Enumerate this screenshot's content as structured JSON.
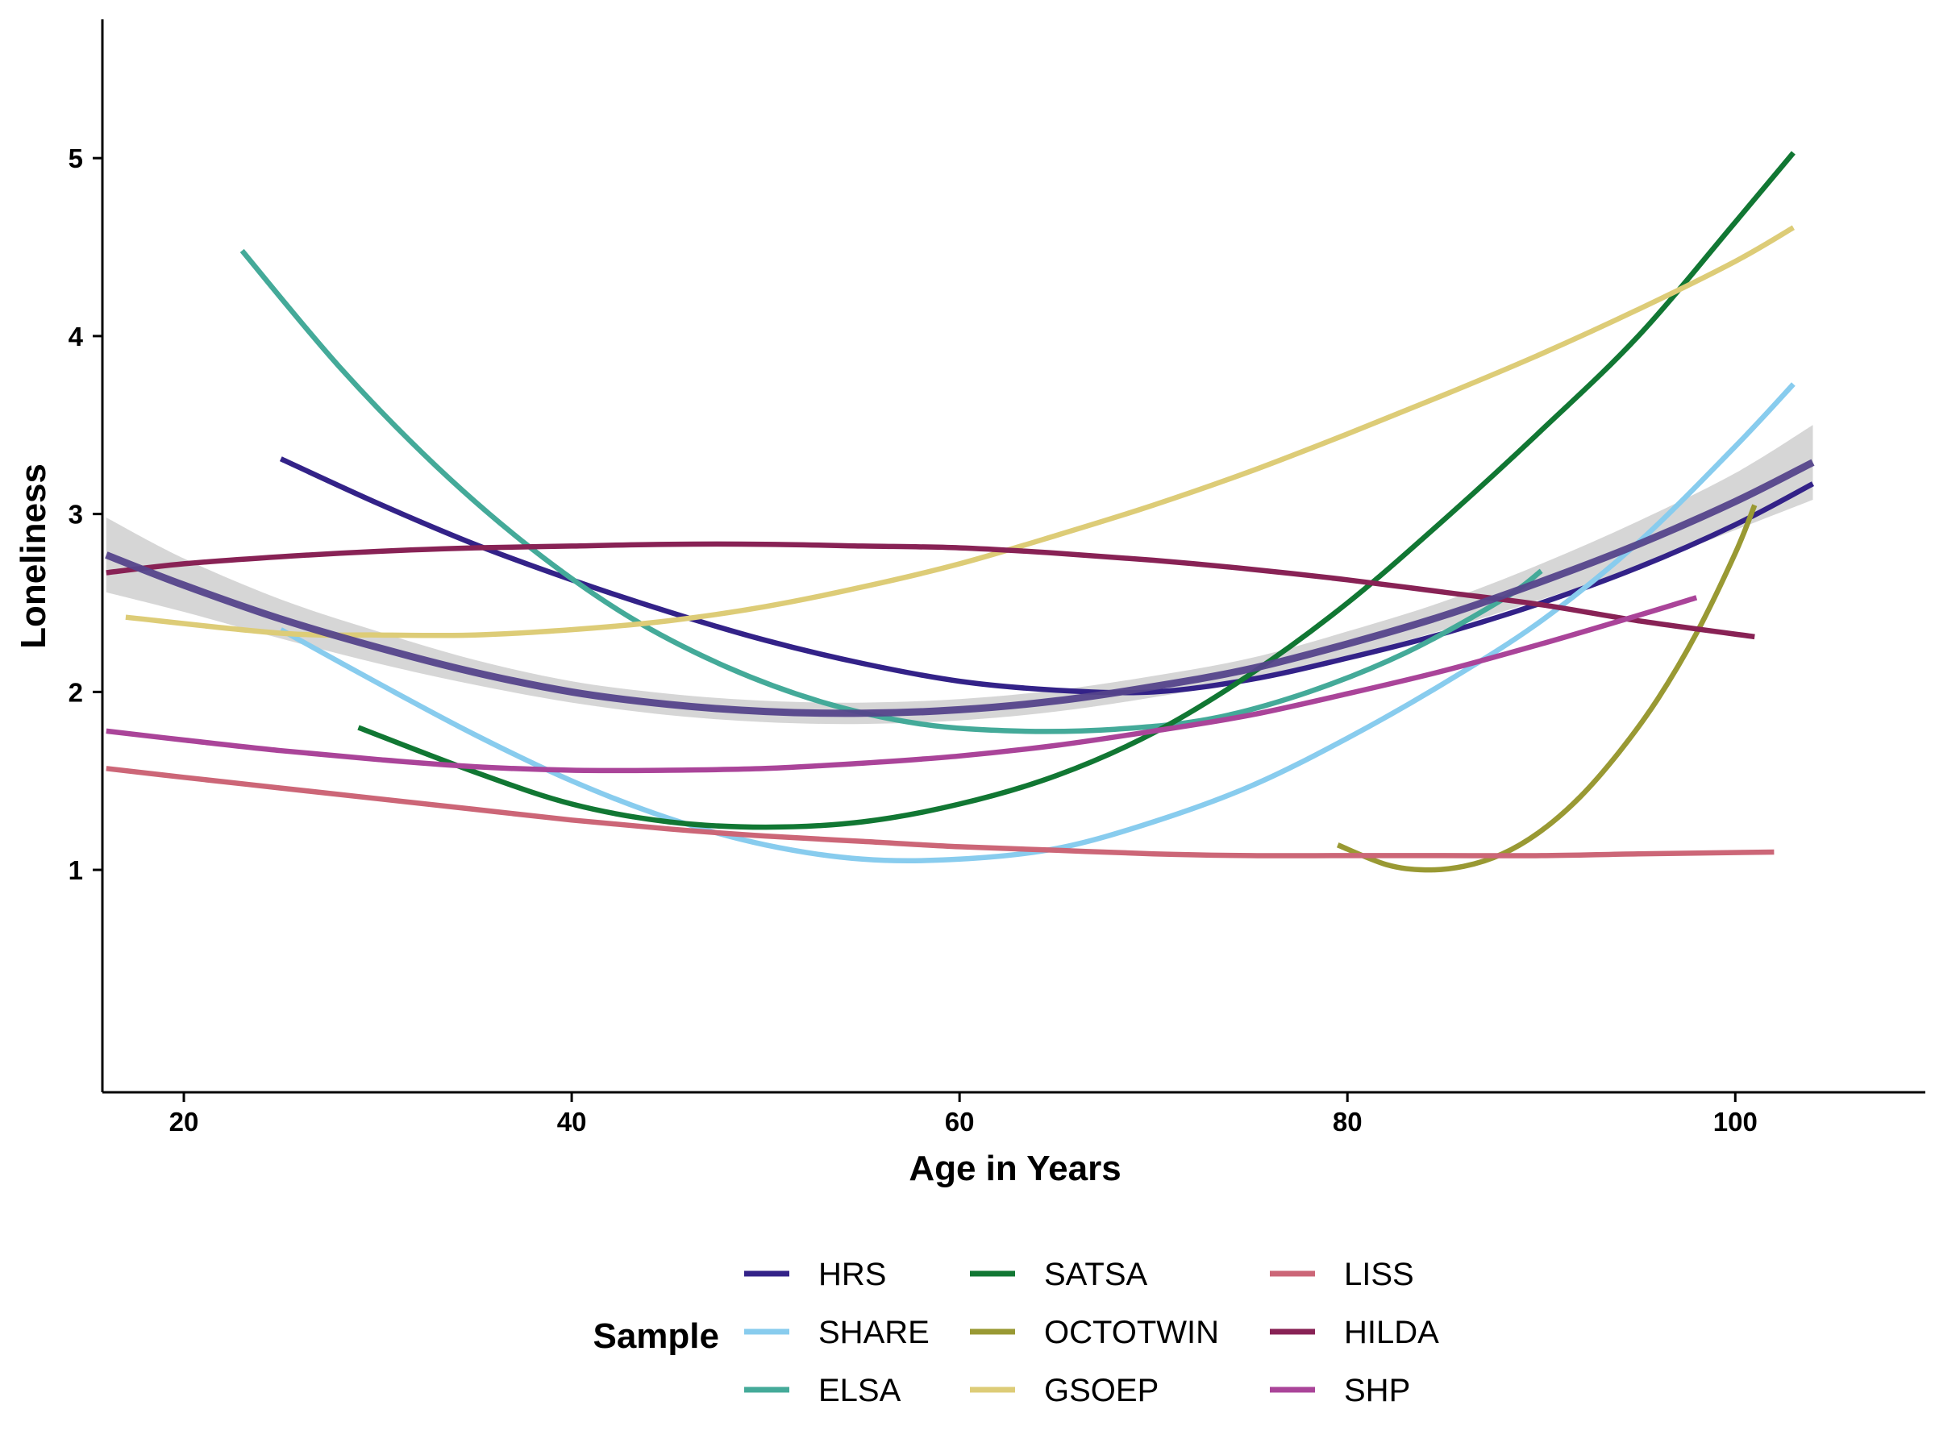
{
  "chart_data": {
    "type": "line",
    "title": "",
    "xlabel": "Age in Years",
    "ylabel": "Loneliness",
    "xlim": [
      15.8,
      109.8
    ],
    "ylim": [
      -0.25,
      5.78
    ],
    "xticks": [
      20,
      40,
      60,
      80,
      100
    ],
    "yticks": [
      1,
      2,
      3,
      4,
      5
    ],
    "grid": false,
    "legend": {
      "title": "Sample",
      "placement": "bottom",
      "columns": [
        [
          "HRS",
          "SHARE",
          "ELSA"
        ],
        [
          "SATSA",
          "OCTOTWIN",
          "GSOEP"
        ],
        [
          "LISS",
          "HILDA",
          "SHP"
        ]
      ]
    },
    "series": [
      {
        "name": "HRS",
        "color": "#332288",
        "x": [
          25,
          30,
          35,
          40,
          45,
          50,
          55,
          60,
          65,
          70,
          75,
          80,
          85,
          90,
          95,
          100,
          104
        ],
        "y": [
          3.31,
          3.06,
          2.83,
          2.63,
          2.45,
          2.29,
          2.16,
          2.06,
          2.01,
          2.0,
          2.07,
          2.19,
          2.33,
          2.5,
          2.7,
          2.94,
          3.17
        ]
      },
      {
        "name": "SHARE",
        "color": "#88CCEE",
        "x": [
          25,
          30,
          35,
          40,
          45,
          50,
          55,
          60,
          65,
          70,
          75,
          80,
          85,
          90,
          95,
          100,
          103
        ],
        "y": [
          2.35,
          2.05,
          1.76,
          1.5,
          1.29,
          1.14,
          1.06,
          1.06,
          1.12,
          1.27,
          1.47,
          1.74,
          2.05,
          2.4,
          2.84,
          3.38,
          3.73
        ]
      },
      {
        "name": "ELSA",
        "color": "#44AA99",
        "x": [
          23,
          28,
          33,
          38,
          43,
          48,
          53,
          58,
          63,
          68,
          73,
          78,
          83,
          88,
          90
        ],
        "y": [
          4.48,
          3.83,
          3.27,
          2.8,
          2.42,
          2.14,
          1.94,
          1.82,
          1.78,
          1.79,
          1.85,
          2.0,
          2.22,
          2.52,
          2.68
        ]
      },
      {
        "name": "SATSA",
        "color": "#117733",
        "x": [
          29,
          35,
          40,
          45,
          50,
          55,
          60,
          65,
          70,
          75,
          80,
          85,
          90,
          95,
          100,
          103
        ],
        "y": [
          1.8,
          1.55,
          1.37,
          1.27,
          1.24,
          1.27,
          1.37,
          1.53,
          1.77,
          2.1,
          2.5,
          2.97,
          3.47,
          4.0,
          4.64,
          5.03
        ]
      },
      {
        "name": "OCTOTWIN",
        "color": "#999933",
        "x": [
          79.5,
          82,
          84,
          86,
          88,
          90,
          92,
          94,
          96,
          98,
          100,
          101
        ],
        "y": [
          1.14,
          1.03,
          1.0,
          1.02,
          1.09,
          1.22,
          1.41,
          1.66,
          1.96,
          2.33,
          2.78,
          3.05
        ]
      },
      {
        "name": "GSOEP",
        "color": "#DDCC77",
        "x": [
          17,
          25,
          30,
          35,
          40,
          45,
          50,
          55,
          60,
          65,
          70,
          75,
          80,
          85,
          90,
          95,
          100,
          103
        ],
        "y": [
          2.42,
          2.33,
          2.32,
          2.32,
          2.35,
          2.4,
          2.48,
          2.59,
          2.72,
          2.88,
          3.05,
          3.24,
          3.45,
          3.67,
          3.9,
          4.15,
          4.42,
          4.61
        ]
      },
      {
        "name": "LISS",
        "color": "#CC6677",
        "x": [
          16,
          20,
          25,
          30,
          35,
          40,
          45,
          50,
          55,
          60,
          65,
          70,
          75,
          80,
          85,
          90,
          95,
          102
        ],
        "y": [
          1.57,
          1.52,
          1.46,
          1.4,
          1.34,
          1.28,
          1.23,
          1.19,
          1.16,
          1.13,
          1.11,
          1.09,
          1.08,
          1.08,
          1.08,
          1.08,
          1.09,
          1.1
        ]
      },
      {
        "name": "HILDA",
        "color": "#882255",
        "x": [
          16,
          20,
          25,
          30,
          35,
          40,
          45,
          50,
          55,
          60,
          65,
          70,
          75,
          80,
          85,
          90,
          95,
          101
        ],
        "y": [
          2.67,
          2.72,
          2.76,
          2.79,
          2.81,
          2.82,
          2.83,
          2.83,
          2.82,
          2.81,
          2.78,
          2.74,
          2.69,
          2.63,
          2.56,
          2.49,
          2.4,
          2.31
        ]
      },
      {
        "name": "SHP",
        "color": "#AA4499",
        "x": [
          16,
          20,
          25,
          30,
          35,
          40,
          45,
          50,
          55,
          60,
          65,
          70,
          75,
          80,
          85,
          90,
          95,
          98
        ],
        "y": [
          1.78,
          1.73,
          1.67,
          1.62,
          1.58,
          1.56,
          1.56,
          1.57,
          1.6,
          1.64,
          1.7,
          1.78,
          1.87,
          1.99,
          2.12,
          2.27,
          2.43,
          2.53
        ]
      }
    ],
    "overall": {
      "color": "#55448B",
      "band_color": "#D4D4D4",
      "x": [
        16,
        20,
        25,
        30,
        35,
        40,
        45,
        50,
        55,
        60,
        65,
        70,
        75,
        80,
        85,
        90,
        95,
        100,
        104
      ],
      "y": [
        2.77,
        2.6,
        2.41,
        2.25,
        2.11,
        2.0,
        1.93,
        1.89,
        1.88,
        1.9,
        1.95,
        2.03,
        2.13,
        2.27,
        2.43,
        2.62,
        2.83,
        3.07,
        3.29
      ],
      "lower": [
        2.56,
        2.45,
        2.3,
        2.16,
        2.04,
        1.94,
        1.87,
        1.83,
        1.82,
        1.84,
        1.89,
        1.97,
        2.07,
        2.2,
        2.35,
        2.52,
        2.7,
        2.91,
        3.08
      ],
      "upper": [
        2.98,
        2.75,
        2.52,
        2.34,
        2.18,
        2.06,
        1.99,
        1.95,
        1.94,
        1.96,
        2.01,
        2.09,
        2.19,
        2.34,
        2.51,
        2.72,
        2.96,
        3.23,
        3.5
      ]
    }
  }
}
